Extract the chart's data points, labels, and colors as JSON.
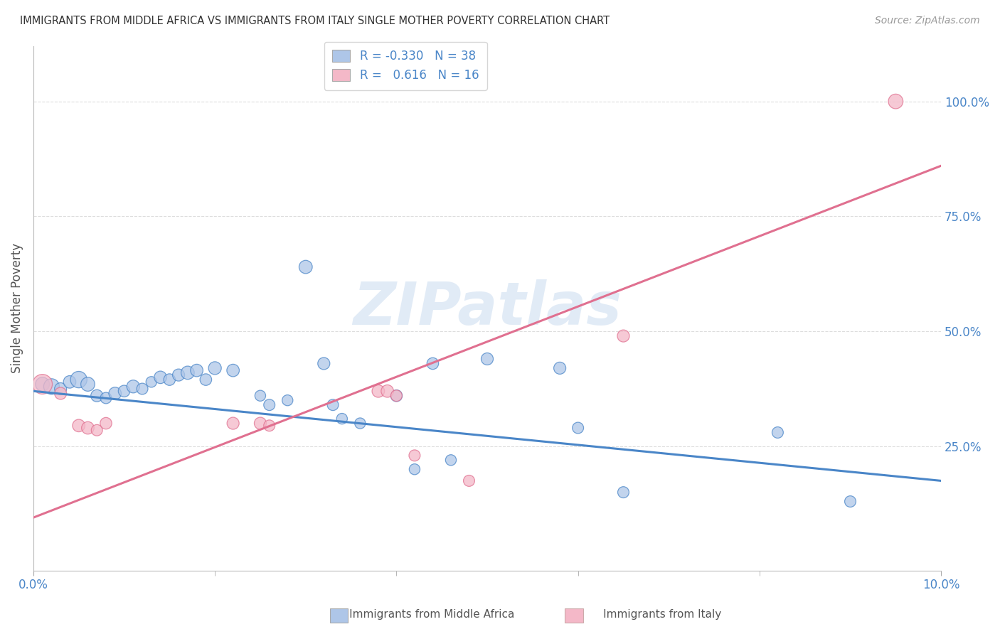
{
  "title": "IMMIGRANTS FROM MIDDLE AFRICA VS IMMIGRANTS FROM ITALY SINGLE MOTHER POVERTY CORRELATION CHART",
  "source": "Source: ZipAtlas.com",
  "ylabel": "Single Mother Poverty",
  "yticks": [
    0.25,
    0.5,
    0.75,
    1.0
  ],
  "ytick_labels": [
    "25.0%",
    "50.0%",
    "75.0%",
    "100.0%"
  ],
  "xlim": [
    0.0,
    0.1
  ],
  "ylim": [
    -0.02,
    1.12
  ],
  "watermark": "ZIPatlas",
  "blue_color": "#aec6e8",
  "pink_color": "#f4b8c8",
  "blue_line_color": "#4a86c8",
  "pink_line_color": "#e07090",
  "blue_scatter": [
    [
      0.001,
      0.385
    ],
    [
      0.002,
      0.38
    ],
    [
      0.003,
      0.375
    ],
    [
      0.004,
      0.39
    ],
    [
      0.005,
      0.395
    ],
    [
      0.006,
      0.385
    ],
    [
      0.007,
      0.36
    ],
    [
      0.008,
      0.355
    ],
    [
      0.009,
      0.365
    ],
    [
      0.01,
      0.37
    ],
    [
      0.011,
      0.38
    ],
    [
      0.012,
      0.375
    ],
    [
      0.013,
      0.39
    ],
    [
      0.014,
      0.4
    ],
    [
      0.015,
      0.395
    ],
    [
      0.016,
      0.405
    ],
    [
      0.017,
      0.41
    ],
    [
      0.018,
      0.415
    ],
    [
      0.019,
      0.395
    ],
    [
      0.02,
      0.42
    ],
    [
      0.022,
      0.415
    ],
    [
      0.025,
      0.36
    ],
    [
      0.026,
      0.34
    ],
    [
      0.028,
      0.35
    ],
    [
      0.03,
      0.64
    ],
    [
      0.032,
      0.43
    ],
    [
      0.033,
      0.34
    ],
    [
      0.034,
      0.31
    ],
    [
      0.036,
      0.3
    ],
    [
      0.04,
      0.36
    ],
    [
      0.042,
      0.2
    ],
    [
      0.044,
      0.43
    ],
    [
      0.046,
      0.22
    ],
    [
      0.05,
      0.44
    ],
    [
      0.058,
      0.42
    ],
    [
      0.06,
      0.29
    ],
    [
      0.065,
      0.15
    ],
    [
      0.082,
      0.28
    ],
    [
      0.09,
      0.13
    ]
  ],
  "pink_scatter": [
    [
      0.001,
      0.385
    ],
    [
      0.003,
      0.365
    ],
    [
      0.005,
      0.295
    ],
    [
      0.006,
      0.29
    ],
    [
      0.007,
      0.285
    ],
    [
      0.008,
      0.3
    ],
    [
      0.022,
      0.3
    ],
    [
      0.025,
      0.3
    ],
    [
      0.026,
      0.295
    ],
    [
      0.038,
      0.37
    ],
    [
      0.039,
      0.37
    ],
    [
      0.04,
      0.36
    ],
    [
      0.042,
      0.23
    ],
    [
      0.048,
      0.175
    ],
    [
      0.065,
      0.49
    ],
    [
      0.095,
      1.0
    ]
  ],
  "blue_dot_sizes": [
    200,
    250,
    150,
    160,
    280,
    200,
    150,
    130,
    160,
    140,
    170,
    130,
    120,
    160,
    140,
    150,
    180,
    160,
    140,
    170,
    160,
    120,
    130,
    120,
    180,
    150,
    130,
    120,
    120,
    140,
    120,
    140,
    120,
    150,
    150,
    130,
    130,
    130,
    130
  ],
  "pink_dot_sizes": [
    400,
    150,
    160,
    160,
    130,
    140,
    150,
    150,
    130,
    160,
    160,
    130,
    130,
    130,
    150,
    220
  ],
  "blue_trend": [
    0.0,
    0.1,
    0.37,
    0.175
  ],
  "pink_trend": [
    0.0,
    0.1,
    0.095,
    0.86
  ]
}
